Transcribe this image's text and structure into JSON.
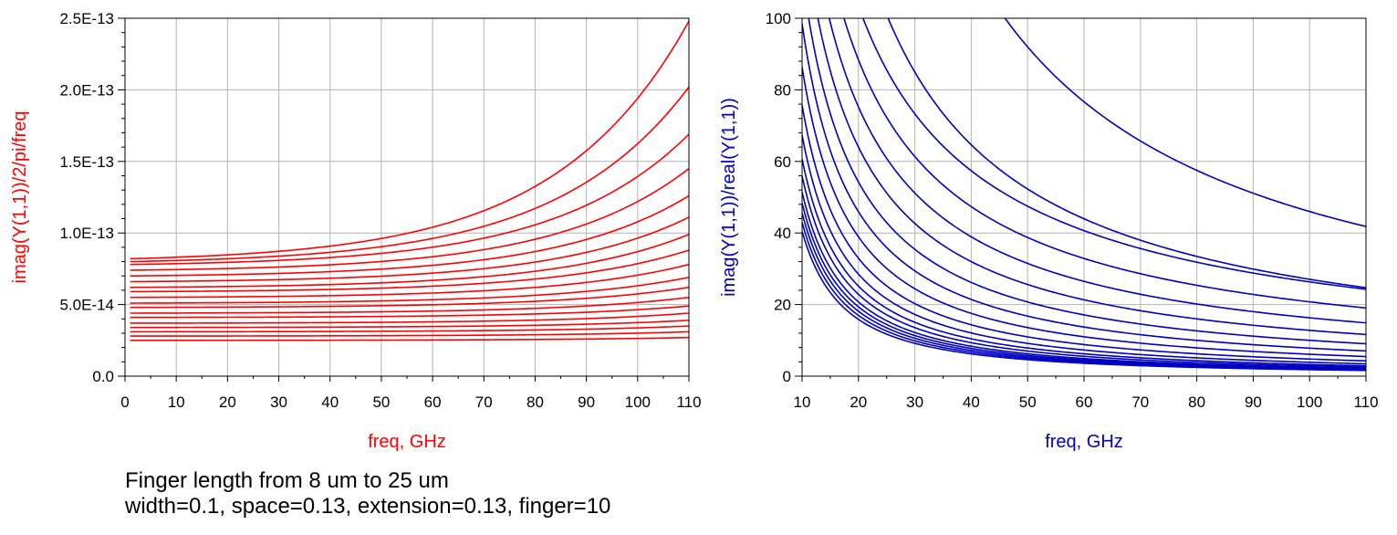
{
  "chart_data": [
    {
      "type": "line",
      "color": "#ff0000",
      "title": "",
      "xlabel": "freq, GHz",
      "ylabel": "imag(Y(1,1))/2/pi/freq",
      "xlim": [
        0,
        110
      ],
      "ylim": [
        0,
        2.5e-13
      ],
      "xticks": [
        0,
        10,
        20,
        30,
        40,
        50,
        60,
        70,
        80,
        90,
        100,
        110
      ],
      "xtick_labels": [
        "0",
        "10",
        "20",
        "30",
        "40",
        "50",
        "60",
        "70",
        "80",
        "90",
        "100",
        "110"
      ],
      "yticks": [
        0,
        5e-14,
        1e-13,
        1.5e-13,
        2e-13,
        2.5e-13
      ],
      "ytick_labels": [
        "0.0",
        "5.0E-14",
        "1.0E-13",
        "1.5E-13",
        "2.0E-13",
        "2.5E-13"
      ],
      "grid": true,
      "x_range": [
        1,
        110
      ],
      "series": [
        {
          "values_at_1GHz": 2.5e-14,
          "values_at_110GHz": 2.7e-14
        },
        {
          "values_at_1GHz": 2.8e-14,
          "values_at_110GHz": 3.1e-14
        },
        {
          "values_at_1GHz": 3.1e-14,
          "values_at_110GHz": 3.5e-14
        },
        {
          "values_at_1GHz": 3.4e-14,
          "values_at_110GHz": 3.9e-14
        },
        {
          "values_at_1GHz": 3.7e-14,
          "values_at_110GHz": 4.4e-14
        },
        {
          "values_at_1GHz": 4.1e-14,
          "values_at_110GHz": 4.9e-14
        },
        {
          "values_at_1GHz": 4.4e-14,
          "values_at_110GHz": 5.5e-14
        },
        {
          "values_at_1GHz": 4.8e-14,
          "values_at_110GHz": 6.2e-14
        },
        {
          "values_at_1GHz": 5.1e-14,
          "values_at_110GHz": 6.9e-14
        },
        {
          "values_at_1GHz": 5.5e-14,
          "values_at_110GHz": 7.8e-14
        },
        {
          "values_at_1GHz": 5.9e-14,
          "values_at_110GHz": 8.8e-14
        },
        {
          "values_at_1GHz": 6.2e-14,
          "values_at_110GHz": 9.9e-14
        },
        {
          "values_at_1GHz": 6.6e-14,
          "values_at_110GHz": 1.11e-13
        },
        {
          "values_at_1GHz": 7e-14,
          "values_at_110GHz": 1.26e-13
        },
        {
          "values_at_1GHz": 7.4e-14,
          "values_at_110GHz": 1.45e-13
        },
        {
          "values_at_1GHz": 7.8e-14,
          "values_at_110GHz": 1.69e-13
        },
        {
          "values_at_1GHz": 8e-14,
          "values_at_110GHz": 2.02e-13
        },
        {
          "values_at_1GHz": 8.2e-14,
          "values_at_110GHz": 2.48e-13
        }
      ]
    },
    {
      "type": "line",
      "color": "#0000c0",
      "title": "",
      "xlabel": "freq, GHz",
      "ylabel": "imag(Y(1,1))/real(Y(1,1))",
      "xlim": [
        10,
        110
      ],
      "ylim": [
        0,
        100
      ],
      "xticks": [
        10,
        20,
        30,
        40,
        50,
        60,
        70,
        80,
        90,
        100,
        110
      ],
      "xtick_labels": [
        "10",
        "20",
        "30",
        "40",
        "50",
        "60",
        "70",
        "80",
        "90",
        "100",
        "110"
      ],
      "yticks": [
        0,
        20,
        40,
        60,
        80,
        100
      ],
      "ytick_labels": [
        "0",
        "20",
        "40",
        "60",
        "80",
        "100"
      ],
      "grid": true,
      "x_range": [
        10,
        110
      ],
      "series": [
        {
          "amp": 905,
          "power": 1.35
        },
        {
          "amp": 940,
          "power": 1.34
        },
        {
          "amp": 975,
          "power": 1.33
        },
        {
          "amp": 1010,
          "power": 1.32
        },
        {
          "amp": 1050,
          "power": 1.31
        },
        {
          "amp": 1090,
          "power": 1.29
        },
        {
          "amp": 1130,
          "power": 1.27
        },
        {
          "amp": 1170,
          "power": 1.24
        },
        {
          "amp": 1200,
          "power": 1.2
        },
        {
          "amp": 1220,
          "power": 1.15
        },
        {
          "amp": 1240,
          "power": 1.1
        },
        {
          "amp": 1260,
          "power": 1.05
        },
        {
          "amp": 1280,
          "power": 1.0
        },
        {
          "amp": 1295,
          "power": 0.95
        },
        {
          "amp": 1310,
          "power": 0.9
        },
        {
          "amp": 1320,
          "power": 0.85
        },
        {
          "amp": 2150,
          "power": 0.95
        },
        {
          "amp": 4600,
          "power": 1.0
        }
      ]
    }
  ],
  "captions": {
    "line1": "Finger length from 8 um to 25 um",
    "line2": "width=0.1, space=0.13, extension=0.13, finger=10"
  }
}
